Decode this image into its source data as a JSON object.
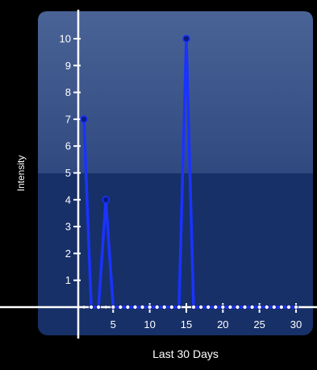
{
  "chart_data": {
    "type": "line",
    "title": "",
    "xlabel": "Last 30 Days",
    "ylabel": "Intensity",
    "xlim": [
      -0.6,
      31.3
    ],
    "ylim": [
      -0.5,
      11.0
    ],
    "x_ticks": [
      5,
      10,
      15,
      20,
      25,
      30
    ],
    "y_ticks": [
      1,
      2,
      3,
      4,
      5,
      6,
      7,
      8,
      9,
      10
    ],
    "grid": false,
    "legend": "none",
    "series": [
      {
        "x": [
          1,
          2,
          3,
          4,
          5,
          6,
          7,
          8,
          9,
          10,
          11,
          12,
          13,
          14,
          15,
          16,
          17,
          18,
          19,
          20,
          21,
          22,
          23,
          24,
          25,
          26,
          27,
          28,
          29,
          30
        ],
        "y": [
          7,
          0,
          0,
          4,
          0,
          0,
          0,
          0,
          0,
          0,
          0,
          0,
          0,
          0,
          10,
          0,
          0,
          0,
          0,
          0,
          0,
          0,
          0,
          0,
          0,
          0,
          0,
          0,
          0,
          0
        ],
        "color": "#1a33ff"
      }
    ],
    "colors": {
      "page_background": "#000000",
      "plot_background_top": "#3b5486",
      "plot_background_bottom": "#173068",
      "axis": "#ffffff",
      "text": "#ffffff",
      "line": "#1a33ff",
      "marker": "#0a1a80"
    }
  }
}
